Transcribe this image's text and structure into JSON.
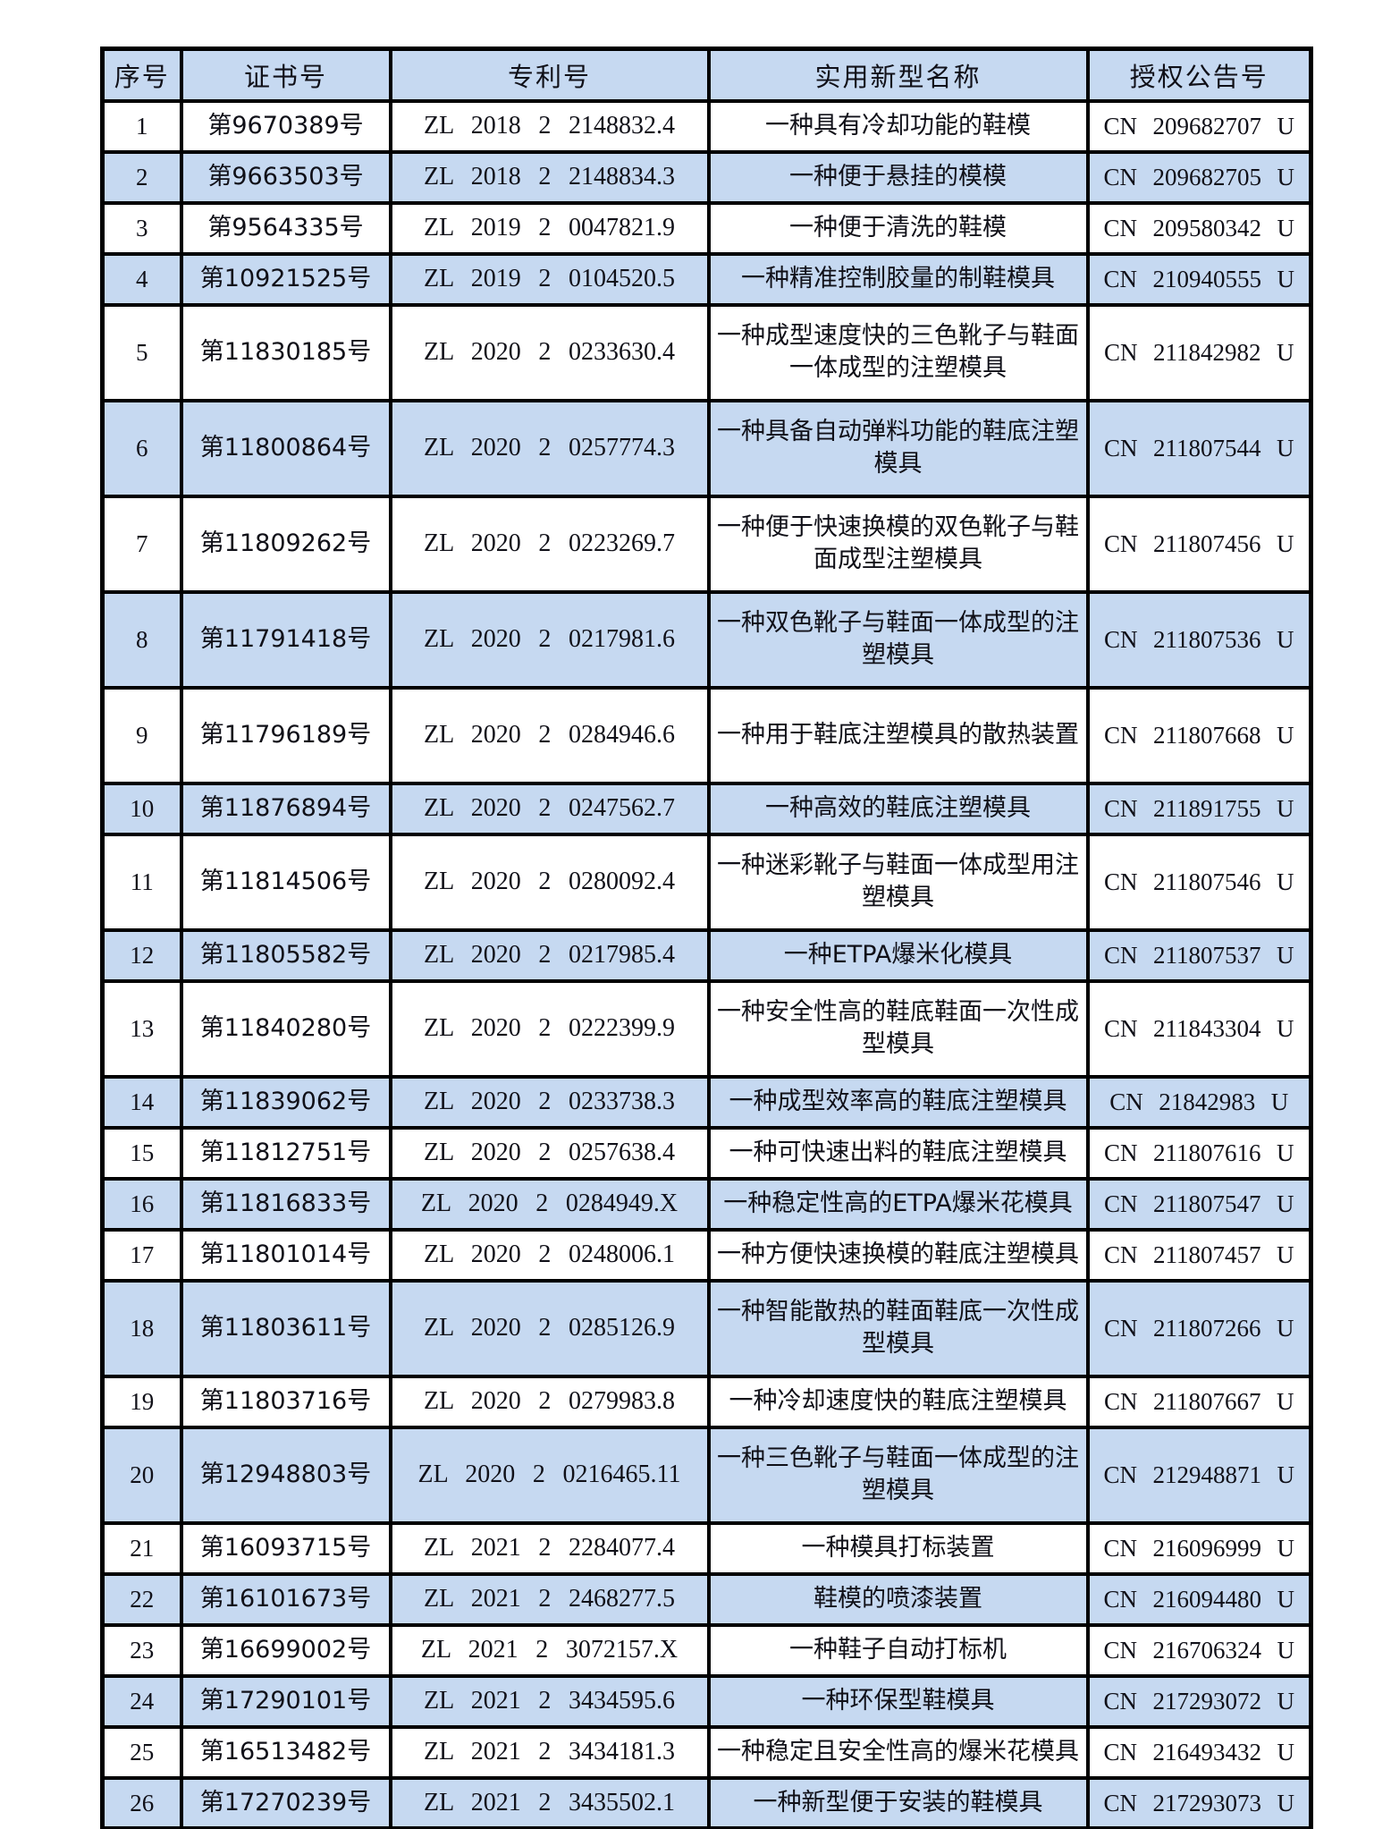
{
  "document": {
    "type_label": "patent-list-table",
    "colors": {
      "row_shade_blue": "#c6d9f1",
      "row_shade_white": "#ffffff",
      "grid_border": "#000000",
      "text": "#101018"
    },
    "table": {
      "columns": [
        {
          "key": "no",
          "label": "序号"
        },
        {
          "key": "cert",
          "label": "证书号"
        },
        {
          "key": "patent",
          "label": "专利号"
        },
        {
          "key": "name",
          "label": "实用新型名称"
        },
        {
          "key": "pub",
          "label": "授权公告号"
        }
      ],
      "rows": [
        {
          "no": "1",
          "cert": "第9670389号",
          "patent": "ZL 2018 2 2148832.4",
          "name": "一种具有冷却功能的鞋模",
          "pub": "CN 209682707 U",
          "two_line": false
        },
        {
          "no": "2",
          "cert": "第9663503号",
          "patent": "ZL 2018 2 2148834.3",
          "name": "一种便于悬挂的模模",
          "pub": "CN 209682705 U",
          "two_line": false
        },
        {
          "no": "3",
          "cert": "第9564335号",
          "patent": "ZL 2019 2 0047821.9",
          "name": "一种便于清洗的鞋模",
          "pub": "CN 209580342 U",
          "two_line": false
        },
        {
          "no": "4",
          "cert": "第10921525号",
          "patent": "ZL 2019 2 0104520.5",
          "name": "一种精准控制胶量的制鞋模具",
          "pub": "CN 210940555 U",
          "two_line": false
        },
        {
          "no": "5",
          "cert": "第11830185号",
          "patent": "ZL 2020 2 0233630.4",
          "name": "一种成型速度快的三色靴子与鞋面一体成型的注塑模具",
          "pub": "CN 211842982 U",
          "two_line": true
        },
        {
          "no": "6",
          "cert": "第11800864号",
          "patent": "ZL 2020 2 0257774.3",
          "name": "一种具备自动弹料功能的鞋底注塑模具",
          "pub": "CN 211807544 U",
          "two_line": true
        },
        {
          "no": "7",
          "cert": "第11809262号",
          "patent": "ZL 2020 2 0223269.7",
          "name": "一种便于快速换模的双色靴子与鞋面成型注塑模具",
          "pub": "CN 211807456 U",
          "two_line": true
        },
        {
          "no": "8",
          "cert": "第11791418号",
          "patent": "ZL 2020 2 0217981.6",
          "name": "一种双色靴子与鞋面一体成型的注塑模具",
          "pub": "CN 211807536 U",
          "two_line": true
        },
        {
          "no": "9",
          "cert": "第11796189号",
          "patent": "ZL 2020 2 0284946.6",
          "name": "一种用于鞋底注塑模具的散热装置",
          "pub": "CN 211807668 U",
          "two_line": true
        },
        {
          "no": "10",
          "cert": "第11876894号",
          "patent": "ZL 2020 2 0247562.7",
          "name": "一种高效的鞋底注塑模具",
          "pub": "CN 211891755 U",
          "two_line": false
        },
        {
          "no": "11",
          "cert": "第11814506号",
          "patent": "ZL 2020 2 0280092.4",
          "name": "一种迷彩靴子与鞋面一体成型用注塑模具",
          "pub": "CN 211807546 U",
          "two_line": true
        },
        {
          "no": "12",
          "cert": "第11805582号",
          "patent": "ZL 2020 2 0217985.4",
          "name": "一种ETPA爆米化模具",
          "pub": "CN 211807537 U",
          "two_line": false
        },
        {
          "no": "13",
          "cert": "第11840280号",
          "patent": "ZL 2020 2 0222399.9",
          "name": "一种安全性高的鞋底鞋面一次性成型模具",
          "pub": "CN 211843304 U",
          "two_line": true
        },
        {
          "no": "14",
          "cert": "第11839062号",
          "patent": "ZL 2020 2 0233738.3",
          "name": "一种成型效率高的鞋底注塑模具",
          "pub": "CN 21842983 U",
          "two_line": false
        },
        {
          "no": "15",
          "cert": "第11812751号",
          "patent": "ZL 2020 2 0257638.4",
          "name": "一种可快速出料的鞋底注塑模具",
          "pub": "CN 211807616 U",
          "two_line": false
        },
        {
          "no": "16",
          "cert": "第11816833号",
          "patent": "ZL 2020 2 0284949.X",
          "name": "一种稳定性高的ETPA爆米花模具",
          "pub": "CN 211807547 U",
          "two_line": false
        },
        {
          "no": "17",
          "cert": "第11801014号",
          "patent": "ZL 2020 2 0248006.1",
          "name": "一种方便快速换模的鞋底注塑模具",
          "pub": "CN 211807457 U",
          "two_line": false
        },
        {
          "no": "18",
          "cert": "第11803611号",
          "patent": "ZL 2020 2 0285126.9",
          "name": "一种智能散热的鞋面鞋底一次性成型模具",
          "pub": "CN 211807266 U",
          "two_line": true
        },
        {
          "no": "19",
          "cert": "第11803716号",
          "patent": "ZL 2020 2 0279983.8",
          "name": "一种冷却速度快的鞋底注塑模具",
          "pub": "CN 211807667 U",
          "two_line": false
        },
        {
          "no": "20",
          "cert": "第12948803号",
          "patent": "ZL 2020 2 0216465.11",
          "name": "一种三色靴子与鞋面一体成型的注塑模具",
          "pub": "CN 212948871 U",
          "two_line": true
        },
        {
          "no": "21",
          "cert": "第16093715号",
          "patent": "ZL 2021 2 2284077.4",
          "name": "一种模具打标装置",
          "pub": "CN 216096999 U",
          "two_line": false
        },
        {
          "no": "22",
          "cert": "第16101673号",
          "patent": "ZL 2021 2 2468277.5",
          "name": "鞋模的喷漆装置",
          "pub": "CN 216094480 U",
          "two_line": false
        },
        {
          "no": "23",
          "cert": "第16699002号",
          "patent": "ZL 2021 2 3072157.X",
          "name": "一种鞋子自动打标机",
          "pub": "CN 216706324 U",
          "two_line": false
        },
        {
          "no": "24",
          "cert": "第17290101号",
          "patent": "ZL 2021 2 3434595.6",
          "name": "一种环保型鞋模具",
          "pub": "CN 217293072 U",
          "two_line": false
        },
        {
          "no": "25",
          "cert": "第16513482号",
          "patent": "ZL 2021 2 3434181.3",
          "name": "一种稳定且安全性高的爆米花模具",
          "pub": "CN 216493432 U",
          "two_line": false
        },
        {
          "no": "26",
          "cert": "第17270239号",
          "patent": "ZL 2021 2 3435502.1",
          "name": "一种新型便于安装的鞋模具",
          "pub": "CN 217293073 U",
          "two_line": false
        }
      ]
    }
  }
}
